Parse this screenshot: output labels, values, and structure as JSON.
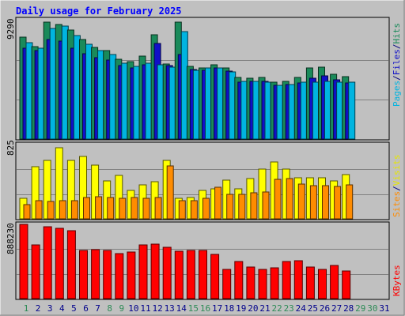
{
  "chart_data": [
    {
      "type": "bar",
      "title": "Daily usage for February 2025",
      "ymax_label": "9290",
      "ylim": [
        0,
        9290
      ],
      "grid": true,
      "days": [
        "1",
        "2",
        "3",
        "4",
        "5",
        "6",
        "7",
        "8",
        "9",
        "10",
        "11",
        "12",
        "13",
        "14",
        "15",
        "16",
        "17",
        "18",
        "19",
        "20",
        "21",
        "22",
        "23",
        "24",
        "25",
        "26",
        "27",
        "28",
        "29",
        "30",
        "31"
      ],
      "series": [
        {
          "name": "Hits",
          "color": "#1a8a5a",
          "values": [
            8000,
            7250,
            9150,
            8950,
            8550,
            7800,
            7200,
            6950,
            6250,
            6050,
            6500,
            8150,
            5900,
            9150,
            5700,
            5600,
            5800,
            5550,
            4850,
            4750,
            4850,
            4450,
            4550,
            4850,
            5550,
            5650,
            5100,
            4900,
            0,
            0,
            0
          ]
        },
        {
          "name": "Files",
          "color": "#1010c8",
          "values": [
            7100,
            6950,
            7800,
            7700,
            7100,
            6700,
            6400,
            6200,
            5750,
            5600,
            5800,
            7500,
            5750,
            6600,
            5450,
            5400,
            5550,
            5350,
            4450,
            4500,
            4500,
            4200,
            4250,
            4400,
            4750,
            4950,
            4650,
            4400,
            0,
            0,
            0
          ]
        },
        {
          "name": "Pages",
          "color": "#00b4e0",
          "values": [
            7550,
            7100,
            8650,
            8850,
            8100,
            7450,
            6950,
            6650,
            5950,
            5700,
            5950,
            5800,
            5650,
            8400,
            5400,
            5550,
            5550,
            5250,
            4500,
            4500,
            4450,
            4200,
            4300,
            4450,
            4450,
            4500,
            4450,
            4450,
            0,
            0,
            0
          ]
        }
      ],
      "legend": [
        "Pages",
        "Files",
        "Hits"
      ]
    },
    {
      "type": "bar",
      "ymax_label": "825",
      "ylim": [
        0,
        825
      ],
      "grid": true,
      "series": [
        {
          "name": "Visits",
          "color": "#ffff00",
          "values": [
            230,
            580,
            650,
            790,
            650,
            690,
            600,
            420,
            480,
            320,
            380,
            410,
            650,
            230,
            240,
            320,
            330,
            430,
            330,
            450,
            550,
            630,
            550,
            460,
            460,
            460,
            420,
            490,
            0,
            0,
            0
          ]
        },
        {
          "name": "Sites",
          "color": "#ff8c00",
          "values": [
            160,
            200,
            190,
            200,
            200,
            240,
            250,
            240,
            230,
            240,
            230,
            240,
            590,
            200,
            200,
            230,
            350,
            270,
            270,
            290,
            300,
            440,
            450,
            390,
            370,
            370,
            360,
            380,
            0,
            0,
            0
          ]
        }
      ],
      "legend": [
        "Sites",
        "Visits"
      ]
    },
    {
      "type": "bar",
      "ymax_label": "888230",
      "ylim": [
        0,
        888230
      ],
      "grid": true,
      "series": [
        {
          "name": "KBytes",
          "color": "#ff0000",
          "values": [
            888230,
            645000,
            860000,
            840000,
            810000,
            580000,
            590000,
            580000,
            540000,
            560000,
            645000,
            655000,
            615000,
            570000,
            580000,
            580000,
            530000,
            345000,
            445000,
            380000,
            345000,
            370000,
            440000,
            455000,
            375000,
            350000,
            395000,
            330000,
            0,
            0,
            0
          ]
        }
      ],
      "legend": [
        "KBytes"
      ]
    }
  ],
  "colors": {
    "bg": "#c0c0c0",
    "title": "#0000ff",
    "weekday": "#00008b",
    "weekend": "#2e8b57",
    "hits_label": "#1a8a5a",
    "files_label": "#1010c8",
    "pages_label": "#00b4e0",
    "visits_label": "#e6e600",
    "sites_label": "#ff8c00",
    "kbytes_label": "#ff0000",
    "sep": "#000080"
  },
  "weekend_days": [
    1,
    8,
    9,
    15,
    16,
    22,
    23,
    29,
    30
  ]
}
